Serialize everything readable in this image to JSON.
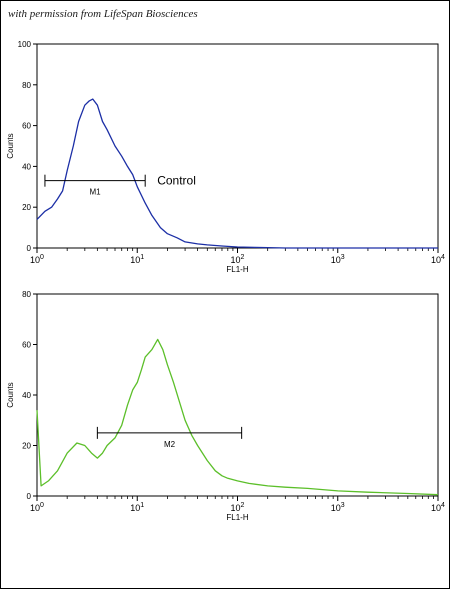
{
  "credit": "with permission from LifeSpan Biosciences",
  "chart_data": [
    {
      "type": "line",
      "title": "",
      "xlabel": "FL1-H",
      "ylabel": "Counts",
      "xscale": "log",
      "xlim": [
        1,
        10000
      ],
      "ylim": [
        0,
        100
      ],
      "yticks": [
        0,
        20,
        40,
        60,
        80,
        100
      ],
      "xticks": [
        {
          "base": "10",
          "exp": "0"
        },
        {
          "base": "10",
          "exp": "1"
        },
        {
          "base": "10",
          "exp": "2"
        },
        {
          "base": "10",
          "exp": "3"
        },
        {
          "base": "10",
          "exp": "4"
        }
      ],
      "color": "#1c2fa6",
      "x": [
        1.0,
        1.2,
        1.4,
        1.6,
        1.8,
        2.0,
        2.3,
        2.6,
        3.0,
        3.3,
        3.6,
        4.0,
        4.5,
        5.0,
        6.0,
        7.0,
        8.0,
        9.0,
        10,
        12,
        14,
        17,
        20,
        25,
        30,
        40,
        50,
        70,
        100,
        150,
        200,
        300,
        10000
      ],
      "y": [
        14,
        18,
        20,
        24,
        28,
        38,
        50,
        62,
        70,
        72,
        73,
        70,
        62,
        58,
        50,
        45,
        40,
        36,
        30,
        22,
        16,
        10,
        7,
        5,
        3,
        2,
        1.5,
        1,
        0.5,
        0.3,
        0.2,
        0,
        0
      ],
      "marker": {
        "label": "M1",
        "x0": 1.2,
        "x1": 12
      },
      "annotation": "Control"
    },
    {
      "type": "line",
      "title": "",
      "xlabel": "FL1-H",
      "ylabel": "Counts",
      "xscale": "log",
      "xlim": [
        1,
        10000
      ],
      "ylim": [
        0,
        80
      ],
      "yticks": [
        0,
        20,
        40,
        60,
        80
      ],
      "xticks": [
        {
          "base": "10",
          "exp": "0"
        },
        {
          "base": "10",
          "exp": "1"
        },
        {
          "base": "10",
          "exp": "2"
        },
        {
          "base": "10",
          "exp": "3"
        },
        {
          "base": "10",
          "exp": "4"
        }
      ],
      "color": "#5cbf2a",
      "x": [
        1.0,
        1.1,
        1.3,
        1.6,
        2.0,
        2.5,
        3.0,
        3.5,
        4.0,
        4.5,
        5.0,
        6.0,
        7.0,
        8.0,
        9.0,
        10,
        11,
        12,
        14,
        16,
        18,
        20,
        23,
        26,
        30,
        35,
        40,
        50,
        60,
        70,
        80,
        100,
        130,
        200,
        300,
        500,
        1000,
        2000,
        5000,
        10000
      ],
      "y": [
        34,
        4,
        6,
        10,
        17,
        21,
        20,
        17,
        15,
        17,
        20,
        23,
        28,
        36,
        42,
        45,
        50,
        55,
        58,
        62,
        58,
        52,
        45,
        38,
        30,
        24,
        20,
        14,
        10,
        8,
        7,
        6,
        5,
        4,
        3.5,
        3,
        2,
        1.5,
        1,
        0.5
      ],
      "marker": {
        "label": "M2",
        "x0": 4,
        "x1": 110
      }
    }
  ]
}
